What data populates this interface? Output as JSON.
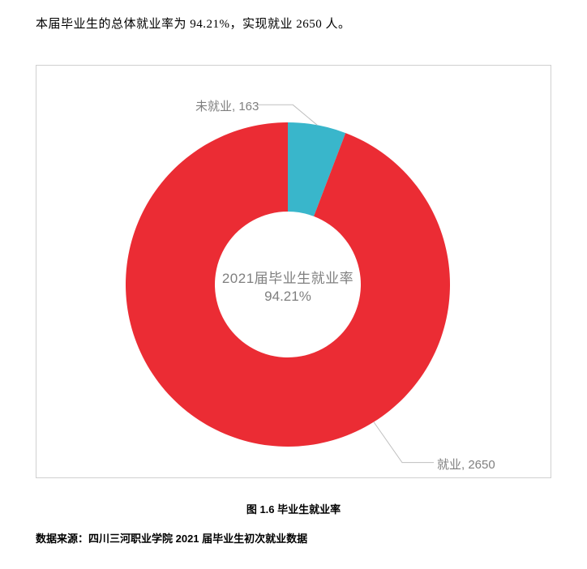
{
  "top_text": "本届毕业生的总体就业率为 94.21%，实现就业 2650 人。",
  "chart": {
    "type": "donut",
    "center_label_line1": "2021届毕业生就业率",
    "center_label_line2": "94.21%",
    "center_label_color": "#7f7f7f",
    "center_label_fontsize": 17,
    "background_color": "#ffffff",
    "border_color": "#d0d0d0",
    "outer_radius": 200,
    "inner_radius": 90,
    "slices": [
      {
        "name": "未就业",
        "value": 163,
        "color": "#39b6cb",
        "percentage": 5.79,
        "label": "未就业, 163",
        "start_angle_deg": -90,
        "end_angle_deg": -69.14
      },
      {
        "name": "就业",
        "value": 2650,
        "color": "#eb2c34",
        "percentage": 94.21,
        "label": "就业, 2650",
        "start_angle_deg": -69.14,
        "end_angle_deg": 270
      }
    ],
    "leader_line_color": "#bfbfbf",
    "label_color": "#7f7f7f",
    "label_fontsize": 15
  },
  "caption": "图 1.6 毕业生就业率",
  "source": "数据来源：四川三河职业学院 2021 届毕业生初次就业数据"
}
